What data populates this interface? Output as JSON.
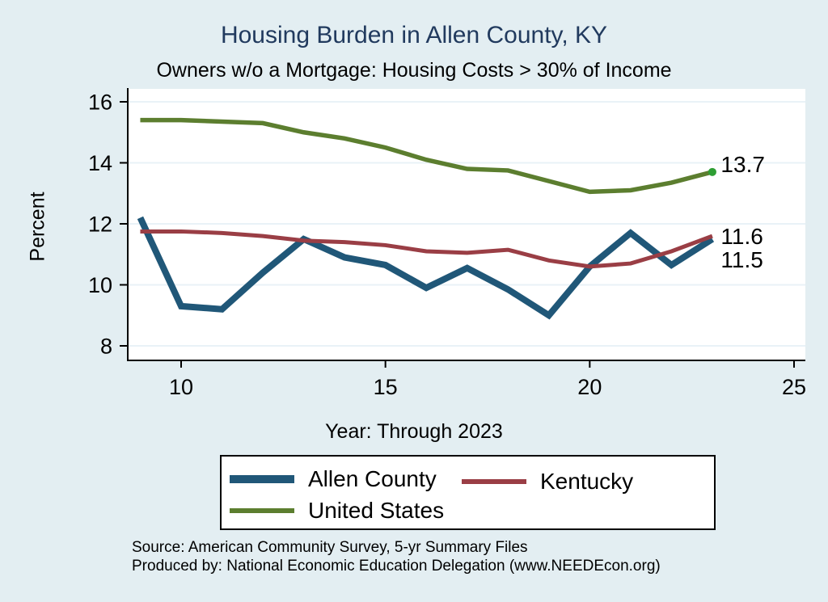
{
  "header": {
    "title": "Housing Burden in Allen County, KY",
    "subtitle": "Owners w/o a Mortgage: Housing Costs > 30% of Income"
  },
  "chart_data": {
    "type": "line",
    "x": [
      9,
      10,
      11,
      12,
      13,
      14,
      15,
      16,
      17,
      18,
      19,
      20,
      21,
      22,
      23
    ],
    "series": [
      {
        "name": "Allen County",
        "color": "#205778",
        "line_width": 8,
        "values": [
          12.2,
          9.3,
          9.2,
          10.4,
          11.5,
          10.9,
          10.65,
          9.9,
          10.55,
          9.85,
          9.0,
          10.6,
          11.7,
          10.65,
          11.5
        ],
        "end_label": "11.5"
      },
      {
        "name": "Kentucky",
        "color": "#9a3e45",
        "line_width": 5,
        "values": [
          11.75,
          11.75,
          11.7,
          11.6,
          11.45,
          11.4,
          11.3,
          11.1,
          11.05,
          11.15,
          10.8,
          10.6,
          10.7,
          11.1,
          11.6
        ],
        "end_label": "11.6"
      },
      {
        "name": "United States",
        "color": "#5c7e2f",
        "line_width": 5.5,
        "values": [
          15.4,
          15.4,
          15.35,
          15.3,
          15.0,
          14.8,
          14.5,
          14.1,
          13.8,
          13.75,
          13.4,
          13.05,
          13.1,
          13.35,
          13.7
        ],
        "end_label": "13.7",
        "end_marker": true,
        "marker_color": "#2e9e33"
      }
    ],
    "xlabel": "Year: Through 2023",
    "ylabel": "Percent",
    "x_ticks": [
      10,
      15,
      20,
      25
    ],
    "y_ticks": [
      8,
      10,
      12,
      14,
      16
    ],
    "xlim": [
      8.7,
      25.3
    ],
    "ylim": [
      7.5,
      16.4
    ],
    "grid": "horizontal",
    "legend_position": "bottom",
    "colors": {
      "page_background": "#e3eef2",
      "plot_background": "#ffffff",
      "gridline": "#e9f2f7",
      "axis": "#000000",
      "title": "#213a5e"
    }
  },
  "footer": {
    "source": "Source: American Community Survey, 5-yr Summary Files",
    "produced_by": "Produced by: National Economic Education Delegation (www.NEEDEcon.org)"
  }
}
